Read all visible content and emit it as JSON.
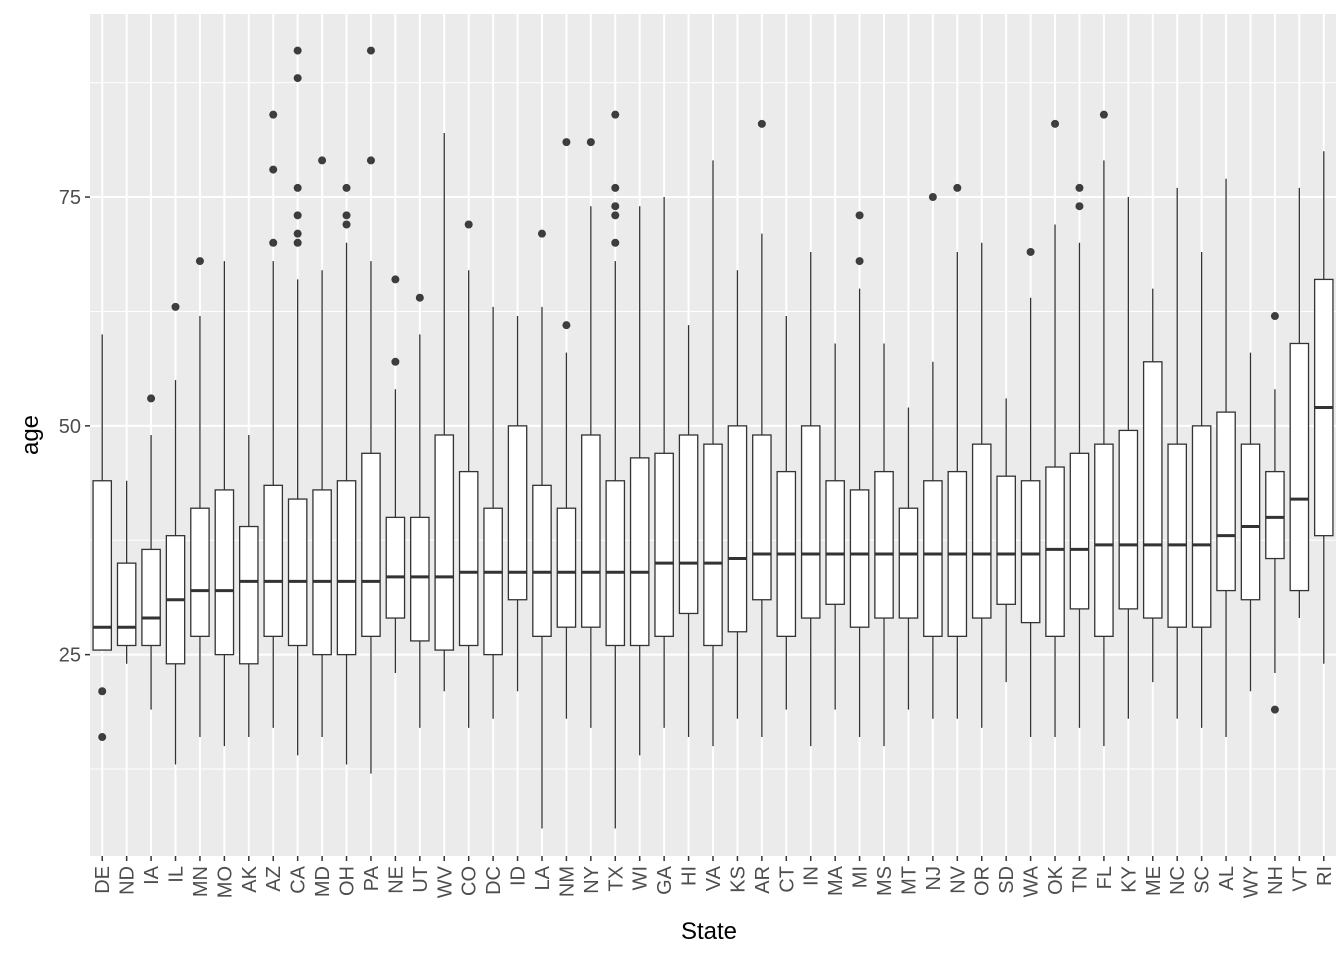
{
  "chart_data": {
    "type": "box",
    "xlabel": "State",
    "ylabel": "age",
    "ylim": [
      3,
      95
    ],
    "yticks": [
      25,
      50,
      75
    ],
    "grid": true,
    "legend": "none",
    "colors": {
      "panel_background": "#ebebeb",
      "grid": "#ffffff",
      "box_fill": "#ffffff",
      "box_line": "#333333",
      "outlier": "#000000"
    },
    "categories": [
      "DE",
      "ND",
      "IA",
      "IL",
      "MN",
      "MO",
      "AK",
      "AZ",
      "CA",
      "MD",
      "OH",
      "PA",
      "NE",
      "UT",
      "WV",
      "CO",
      "DC",
      "ID",
      "LA",
      "NM",
      "NY",
      "TX",
      "WI",
      "GA",
      "HI",
      "VA",
      "KS",
      "AR",
      "CT",
      "IN",
      "MA",
      "MI",
      "MS",
      "MT",
      "NJ",
      "NV",
      "OR",
      "SD",
      "WA",
      "OK",
      "TN",
      "FL",
      "KY",
      "ME",
      "NC",
      "SC",
      "AL",
      "WY",
      "NH",
      "VT",
      "RI"
    ],
    "boxes": [
      {
        "state": "DE",
        "lower": 25.5,
        "q1": 25.5,
        "median": 28,
        "q3": 44,
        "upper": 60,
        "outliers": [
          16,
          21
        ]
      },
      {
        "state": "ND",
        "lower": 24,
        "q1": 26,
        "median": 28,
        "q3": 35,
        "upper": 44,
        "outliers": []
      },
      {
        "state": "IA",
        "lower": 19,
        "q1": 26,
        "median": 29,
        "q3": 36.5,
        "upper": 49,
        "outliers": [
          53
        ]
      },
      {
        "state": "IL",
        "lower": 13,
        "q1": 24,
        "median": 31,
        "q3": 38,
        "upper": 55,
        "outliers": [
          63
        ]
      },
      {
        "state": "MN",
        "lower": 16,
        "q1": 27,
        "median": 32,
        "q3": 41,
        "upper": 62,
        "outliers": [
          68
        ]
      },
      {
        "state": "MO",
        "lower": 15,
        "q1": 25,
        "median": 32,
        "q3": 43,
        "upper": 68,
        "outliers": []
      },
      {
        "state": "AK",
        "lower": 16,
        "q1": 24,
        "median": 33,
        "q3": 39,
        "upper": 49,
        "outliers": []
      },
      {
        "state": "AZ",
        "lower": 17,
        "q1": 27,
        "median": 33,
        "q3": 43.5,
        "upper": 68,
        "outliers": [
          70,
          78,
          84
        ]
      },
      {
        "state": "CA",
        "lower": 14,
        "q1": 26,
        "median": 33,
        "q3": 42,
        "upper": 66,
        "outliers": [
          70,
          71,
          73,
          76,
          88,
          91
        ]
      },
      {
        "state": "MD",
        "lower": 16,
        "q1": 25,
        "median": 33,
        "q3": 43,
        "upper": 67,
        "outliers": [
          79
        ]
      },
      {
        "state": "OH",
        "lower": 13,
        "q1": 25,
        "median": 33,
        "q3": 44,
        "upper": 70,
        "outliers": [
          72,
          73,
          76
        ]
      },
      {
        "state": "PA",
        "lower": 12,
        "q1": 27,
        "median": 33,
        "q3": 47,
        "upper": 68,
        "outliers": [
          79,
          91
        ]
      },
      {
        "state": "NE",
        "lower": 23,
        "q1": 29,
        "median": 33.5,
        "q3": 40,
        "upper": 54,
        "outliers": [
          57,
          66
        ]
      },
      {
        "state": "UT",
        "lower": 17,
        "q1": 26.5,
        "median": 33.5,
        "q3": 40,
        "upper": 60,
        "outliers": [
          64
        ]
      },
      {
        "state": "WV",
        "lower": 21,
        "q1": 25.5,
        "median": 33.5,
        "q3": 49,
        "upper": 82,
        "outliers": []
      },
      {
        "state": "CO",
        "lower": 17,
        "q1": 26,
        "median": 34,
        "q3": 45,
        "upper": 67,
        "outliers": [
          72
        ]
      },
      {
        "state": "DC",
        "lower": 18,
        "q1": 25,
        "median": 34,
        "q3": 41,
        "upper": 63,
        "outliers": []
      },
      {
        "state": "ID",
        "lower": 21,
        "q1": 31,
        "median": 34,
        "q3": 50,
        "upper": 62,
        "outliers": []
      },
      {
        "state": "LA",
        "lower": 6,
        "q1": 27,
        "median": 34,
        "q3": 43.5,
        "upper": 63,
        "outliers": [
          71
        ]
      },
      {
        "state": "NM",
        "lower": 18,
        "q1": 28,
        "median": 34,
        "q3": 41,
        "upper": 58,
        "outliers": [
          61,
          81
        ]
      },
      {
        "state": "NY",
        "lower": 17,
        "q1": 28,
        "median": 34,
        "q3": 49,
        "upper": 74,
        "outliers": [
          81
        ]
      },
      {
        "state": "TX",
        "lower": 6,
        "q1": 26,
        "median": 34,
        "q3": 44,
        "upper": 68,
        "outliers": [
          70,
          73,
          74,
          76,
          84
        ]
      },
      {
        "state": "WI",
        "lower": 14,
        "q1": 26,
        "median": 34,
        "q3": 46.5,
        "upper": 74,
        "outliers": []
      },
      {
        "state": "GA",
        "lower": 17,
        "q1": 27,
        "median": 35,
        "q3": 47,
        "upper": 75,
        "outliers": []
      },
      {
        "state": "HI",
        "lower": 16,
        "q1": 29.5,
        "median": 35,
        "q3": 49,
        "upper": 61,
        "outliers": []
      },
      {
        "state": "VA",
        "lower": 15,
        "q1": 26,
        "median": 35,
        "q3": 48,
        "upper": 79,
        "outliers": []
      },
      {
        "state": "KS",
        "lower": 18,
        "q1": 27.5,
        "median": 35.5,
        "q3": 50,
        "upper": 67,
        "outliers": []
      },
      {
        "state": "AR",
        "lower": 16,
        "q1": 31,
        "median": 36,
        "q3": 49,
        "upper": 71,
        "outliers": [
          83
        ]
      },
      {
        "state": "CT",
        "lower": 19,
        "q1": 27,
        "median": 36,
        "q3": 45,
        "upper": 62,
        "outliers": []
      },
      {
        "state": "IN",
        "lower": 15,
        "q1": 29,
        "median": 36,
        "q3": 50,
        "upper": 69,
        "outliers": []
      },
      {
        "state": "MA",
        "lower": 19,
        "q1": 30.5,
        "median": 36,
        "q3": 44,
        "upper": 59,
        "outliers": []
      },
      {
        "state": "MI",
        "lower": 16,
        "q1": 28,
        "median": 36,
        "q3": 43,
        "upper": 65,
        "outliers": [
          68,
          73
        ]
      },
      {
        "state": "MS",
        "lower": 15,
        "q1": 29,
        "median": 36,
        "q3": 45,
        "upper": 59,
        "outliers": []
      },
      {
        "state": "MT",
        "lower": 19,
        "q1": 29,
        "median": 36,
        "q3": 41,
        "upper": 52,
        "outliers": []
      },
      {
        "state": "NJ",
        "lower": 18,
        "q1": 27,
        "median": 36,
        "q3": 44,
        "upper": 57,
        "outliers": [
          75
        ]
      },
      {
        "state": "NV",
        "lower": 18,
        "q1": 27,
        "median": 36,
        "q3": 45,
        "upper": 69,
        "outliers": [
          76
        ]
      },
      {
        "state": "OR",
        "lower": 17,
        "q1": 29,
        "median": 36,
        "q3": 48,
        "upper": 70,
        "outliers": []
      },
      {
        "state": "SD",
        "lower": 22,
        "q1": 30.5,
        "median": 36,
        "q3": 44.5,
        "upper": 53,
        "outliers": []
      },
      {
        "state": "WA",
        "lower": 16,
        "q1": 28.5,
        "median": 36,
        "q3": 44,
        "upper": 64,
        "outliers": [
          69
        ]
      },
      {
        "state": "OK",
        "lower": 16,
        "q1": 27,
        "median": 36.5,
        "q3": 45.5,
        "upper": 72,
        "outliers": [
          83
        ]
      },
      {
        "state": "TN",
        "lower": 17,
        "q1": 30,
        "median": 36.5,
        "q3": 47,
        "upper": 70,
        "outliers": [
          74,
          76
        ]
      },
      {
        "state": "FL",
        "lower": 15,
        "q1": 27,
        "median": 37,
        "q3": 48,
        "upper": 79,
        "outliers": [
          84
        ]
      },
      {
        "state": "KY",
        "lower": 18,
        "q1": 30,
        "median": 37,
        "q3": 49.5,
        "upper": 75,
        "outliers": []
      },
      {
        "state": "ME",
        "lower": 22,
        "q1": 29,
        "median": 37,
        "q3": 57,
        "upper": 65,
        "outliers": []
      },
      {
        "state": "NC",
        "lower": 18,
        "q1": 28,
        "median": 37,
        "q3": 48,
        "upper": 76,
        "outliers": []
      },
      {
        "state": "SC",
        "lower": 17,
        "q1": 28,
        "median": 37,
        "q3": 50,
        "upper": 69,
        "outliers": []
      },
      {
        "state": "AL",
        "lower": 16,
        "q1": 32,
        "median": 38,
        "q3": 51.5,
        "upper": 77,
        "outliers": []
      },
      {
        "state": "WY",
        "lower": 21,
        "q1": 31,
        "median": 39,
        "q3": 48,
        "upper": 58,
        "outliers": []
      },
      {
        "state": "NH",
        "lower": 23,
        "q1": 35.5,
        "median": 40,
        "q3": 45,
        "upper": 54,
        "outliers": [
          19,
          62
        ]
      },
      {
        "state": "VT",
        "lower": 29,
        "q1": 32,
        "median": 42,
        "q3": 59,
        "upper": 76,
        "outliers": []
      },
      {
        "state": "RI",
        "lower": 24,
        "q1": 38,
        "median": 52,
        "q3": 66,
        "upper": 80,
        "outliers": []
      }
    ]
  }
}
